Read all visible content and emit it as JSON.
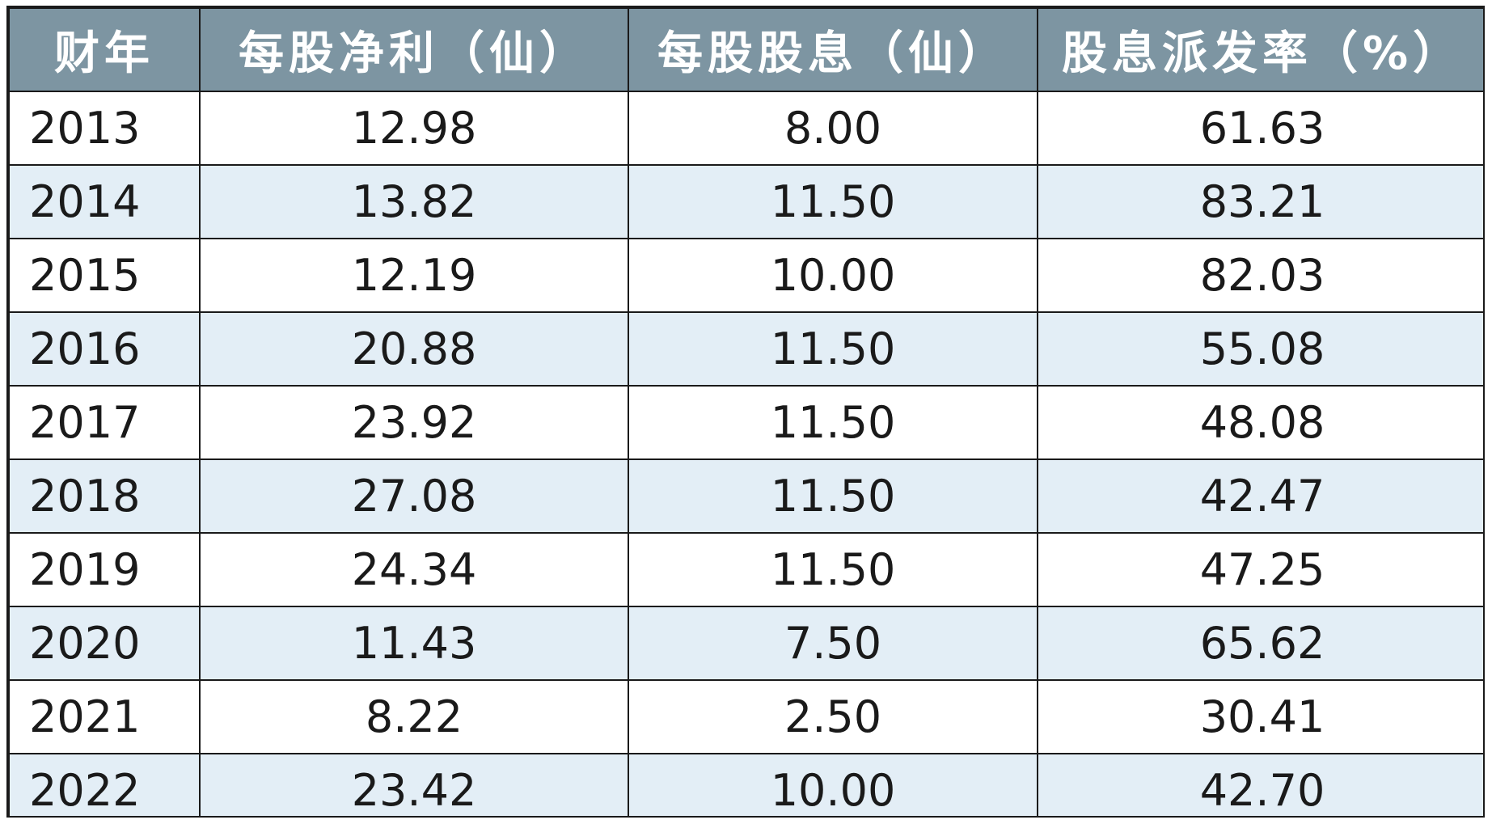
{
  "chart_data": {
    "type": "table",
    "columns": [
      "财年",
      "每股净利（仙）",
      "每股股息（仙）",
      "股息派发率（%）"
    ],
    "rows": [
      [
        "2013",
        "12.98",
        "8.00",
        "61.63"
      ],
      [
        "2014",
        "13.82",
        "11.50",
        "83.21"
      ],
      [
        "2015",
        "12.19",
        "10.00",
        "82.03"
      ],
      [
        "2016",
        "20.88",
        "11.50",
        "55.08"
      ],
      [
        "2017",
        "23.92",
        "11.50",
        "48.08"
      ],
      [
        "2018",
        "27.08",
        "11.50",
        "42.47"
      ],
      [
        "2019",
        "24.34",
        "11.50",
        "47.25"
      ],
      [
        "2020",
        "11.43",
        "7.50",
        "65.62"
      ],
      [
        "2021",
        "8.22",
        "2.50",
        "30.41"
      ],
      [
        "2022",
        "23.42",
        "10.00",
        "42.70"
      ]
    ],
    "colors": {
      "header_bg": "#7d95a2",
      "header_text": "#ffffff",
      "row_alt_bg": "#e3eef6",
      "row_bg": "#ffffff",
      "border": "#1a1a1a",
      "text": "#1a1a1a"
    }
  }
}
